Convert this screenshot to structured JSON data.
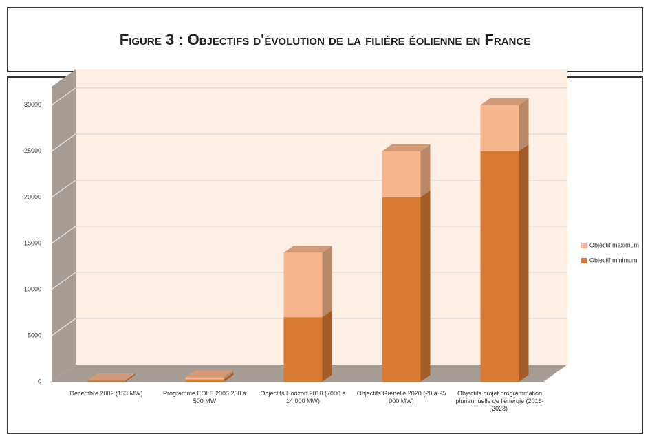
{
  "title": "Figure 3 : Objectifs d'évolution de la filière éolienne en France",
  "chart_data": {
    "type": "bar",
    "stacked": true,
    "categories": [
      "Décembre 2002 (153 MW)",
      "Programme EOLE 2005 250 à 500 MW",
      "Objectifs Horizon 2010 (7000 à 14 000 MW)",
      "Objectifs Grenelle 2020 (20 à 25 000 MW)",
      "Objectifs projet programmation pluriannuelle de l'énergie (2016-2023)"
    ],
    "series": [
      {
        "name": "Objectif minimum",
        "color": "#d97a32",
        "values": [
          153,
          250,
          7000,
          20000,
          25000
        ]
      },
      {
        "name": "Objectif maximum",
        "color": "#f7b58c",
        "values": [
          0,
          250,
          7000,
          5000,
          5000
        ]
      }
    ],
    "ylim": [
      0,
      32000
    ],
    "yticks": [
      0,
      5000,
      10000,
      15000,
      20000,
      25000,
      30000
    ],
    "grid": true
  }
}
